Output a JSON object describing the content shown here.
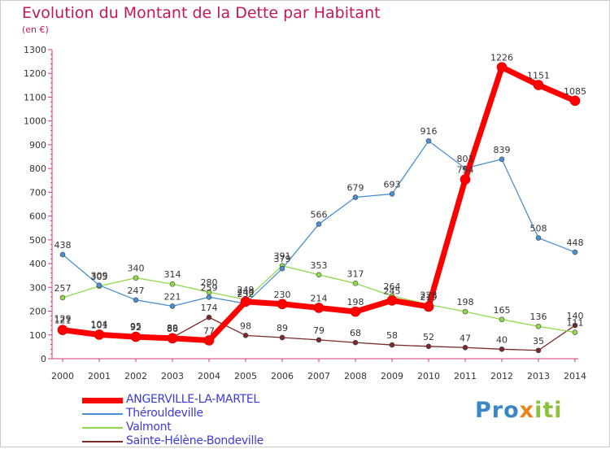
{
  "title": "Evolution du Montant de la Dette par Habitant",
  "subtitle": "(en €)",
  "logo": {
    "part1": "Pro",
    "part2": "x",
    "part3": "iti"
  },
  "chart_data": {
    "type": "line",
    "title": "Evolution du Montant de la Dette par Habitant",
    "subtitle": "(en €)",
    "xlabel": "",
    "ylabel": "",
    "x": [
      2000,
      2001,
      2002,
      2003,
      2004,
      2005,
      2006,
      2007,
      2008,
      2009,
      2010,
      2011,
      2012,
      2013,
      2014
    ],
    "ylim": [
      0,
      1300
    ],
    "yticks": [
      0,
      100,
      200,
      300,
      400,
      500,
      600,
      700,
      800,
      900,
      1000,
      1100,
      1200,
      1300
    ],
    "grid": false,
    "legend_position": "bottom-left",
    "series": [
      {
        "name": "ANGERVILLE-LA-MARTEL",
        "color": "#ff0000",
        "values": [
          121,
          101,
          92,
          86,
          77,
          240,
          230,
          214,
          198,
          245,
          219,
          754,
          1226,
          1151,
          1085
        ]
      },
      {
        "name": "Thérouldeville",
        "color": "#4a8fd0",
        "values": [
          438,
          309,
          247,
          221,
          259,
          232,
          379,
          566,
          679,
          693,
          916,
          801,
          839,
          508,
          448
        ]
      },
      {
        "name": "Valmont",
        "color": "#8fd94a",
        "values": [
          257,
          305,
          340,
          314,
          280,
          249,
          391,
          353,
          317,
          264,
          228,
          198,
          165,
          136,
          111
        ]
      },
      {
        "name": "Sainte-Hélène-Bondeville",
        "color": "#7a2a2a",
        "values": [
          129,
          104,
          95,
          89,
          174,
          98,
          89,
          79,
          68,
          58,
          52,
          47,
          40,
          35,
          140
        ]
      }
    ]
  }
}
